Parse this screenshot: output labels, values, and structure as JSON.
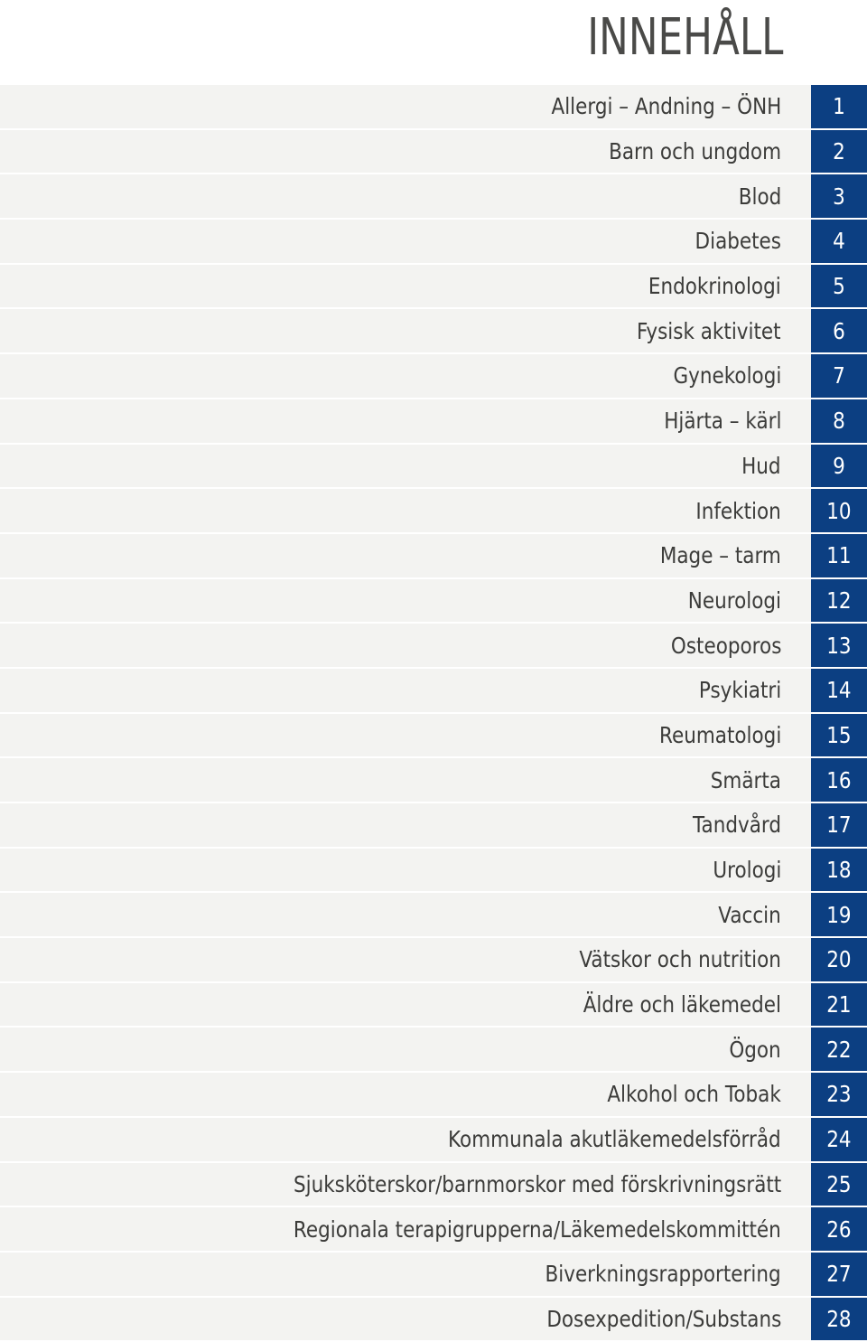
{
  "page": {
    "title": "INNEHÅLL"
  },
  "colors": {
    "accent": "#0c3f82",
    "band": "#f3f3f1",
    "text": "#3c3c3a"
  },
  "toc": {
    "items": [
      {
        "label": "Allergi – Andning – ÖNH",
        "number": "1"
      },
      {
        "label": "Barn och ungdom",
        "number": "2"
      },
      {
        "label": "Blod",
        "number": "3"
      },
      {
        "label": "Diabetes",
        "number": "4"
      },
      {
        "label": "Endokrinologi",
        "number": "5"
      },
      {
        "label": "Fysisk aktivitet",
        "number": "6"
      },
      {
        "label": "Gynekologi",
        "number": "7"
      },
      {
        "label": "Hjärta – kärl",
        "number": "8"
      },
      {
        "label": "Hud",
        "number": "9"
      },
      {
        "label": "Infektion",
        "number": "10"
      },
      {
        "label": "Mage – tarm",
        "number": "11"
      },
      {
        "label": "Neurologi",
        "number": "12"
      },
      {
        "label": "Osteoporos",
        "number": "13"
      },
      {
        "label": "Psykiatri",
        "number": "14"
      },
      {
        "label": "Reumatologi",
        "number": "15"
      },
      {
        "label": "Smärta",
        "number": "16"
      },
      {
        "label": "Tandvård",
        "number": "17"
      },
      {
        "label": "Urologi",
        "number": "18"
      },
      {
        "label": "Vaccin",
        "number": "19"
      },
      {
        "label": "Vätskor och nutrition",
        "number": "20"
      },
      {
        "label": "Äldre och läkemedel",
        "number": "21"
      },
      {
        "label": "Ögon",
        "number": "22"
      },
      {
        "label": "Alkohol och Tobak",
        "number": "23"
      },
      {
        "label": "Kommunala akutläkemedelsförråd",
        "number": "24"
      },
      {
        "label": "Sjuksköterskor/barnmorskor med förskrivningsrätt",
        "number": "25"
      },
      {
        "label": "Regionala terapigrupperna/Läkemedelskommittén",
        "number": "26"
      },
      {
        "label": "Biverkningsrapportering",
        "number": "27"
      },
      {
        "label": "Dosexpedition/Substans",
        "number": "28"
      }
    ]
  }
}
